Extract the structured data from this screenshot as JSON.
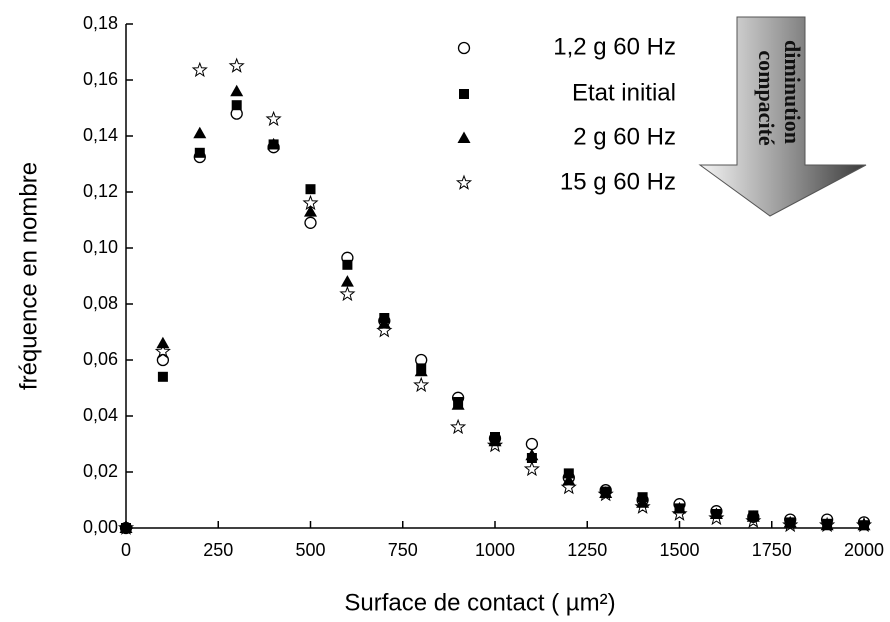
{
  "chart_data": {
    "type": "scatter",
    "x_label": "Surface de contact   ( µm²)",
    "y_label": "fréquence en nombre",
    "annotation": [
      "diminution",
      "compacité"
    ],
    "xlim": [
      0,
      2000
    ],
    "ylim": [
      0,
      0.18
    ],
    "xticks": [
      0,
      250,
      500,
      750,
      1000,
      1250,
      1500,
      1750,
      2000
    ],
    "yticks": [
      {
        "value": 0,
        "label": "0,00"
      },
      {
        "value": 0.02,
        "label": "0,02"
      },
      {
        "value": 0.04,
        "label": "0,04"
      },
      {
        "value": 0.06,
        "label": "0,06"
      },
      {
        "value": 0.08,
        "label": "0,08"
      },
      {
        "value": 0.1,
        "label": "0,10"
      },
      {
        "value": 0.12,
        "label": "0,12"
      },
      {
        "value": 0.14,
        "label": "0,14"
      },
      {
        "value": 0.16,
        "label": "0,16"
      },
      {
        "value": 0.18,
        "label": "0,18"
      }
    ],
    "legend": "upper right",
    "x": [
      0,
      100,
      200,
      300,
      400,
      500,
      600,
      700,
      800,
      900,
      1000,
      1100,
      1200,
      1300,
      1400,
      1500,
      1600,
      1700,
      1800,
      1900,
      2000
    ],
    "series": [
      {
        "name": "1,2 g  60 Hz",
        "color": "#000000",
        "marker": "circle",
        "values": [
          0,
          0.06,
          0.1325,
          0.148,
          0.136,
          0.109,
          0.0965,
          0.074,
          0.06,
          0.0465,
          0.032,
          0.03,
          0.018,
          0.0135,
          0.01,
          0.0085,
          0.006,
          0.004,
          0.003,
          0.003,
          0.002
        ]
      },
      {
        "name": "Etat initial",
        "color": "#000000",
        "marker": "square",
        "values": [
          0,
          0.054,
          0.134,
          0.151,
          0.137,
          0.121,
          0.094,
          0.075,
          0.057,
          0.045,
          0.0325,
          0.025,
          0.0195,
          0.013,
          0.011,
          0.007,
          0.005,
          0.0045,
          0.002,
          0.0015,
          0.001
        ]
      },
      {
        "name": "2 g  60 Hz",
        "color": "#000000",
        "marker": "triangle",
        "values": [
          0,
          0.066,
          0.141,
          0.156,
          0.137,
          0.113,
          0.088,
          0.073,
          0.056,
          0.044,
          0.031,
          0.026,
          0.017,
          0.0125,
          0.009,
          0.007,
          0.005,
          0.004,
          0.002,
          0.001,
          0.001
        ]
      },
      {
        "name": "15 g  60 Hz",
        "color": "#000000",
        "marker": "star",
        "values": [
          0,
          0.063,
          0.1635,
          0.165,
          0.146,
          0.116,
          0.0835,
          0.0705,
          0.051,
          0.036,
          0.0295,
          0.021,
          0.0145,
          0.012,
          0.0075,
          0.005,
          0.0035,
          0.0025,
          0.001,
          0.001,
          0.001
        ]
      }
    ]
  }
}
